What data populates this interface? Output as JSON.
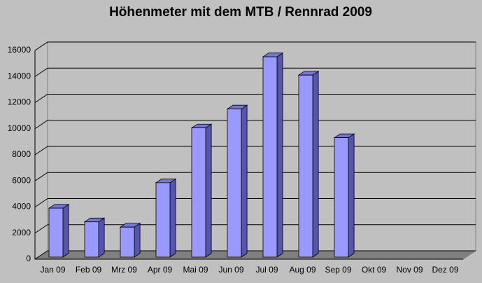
{
  "chart_data": {
    "type": "bar",
    "title": "Höhenmeter mit dem MTB / Rennrad 2009",
    "categories": [
      "Jan 09",
      "Feb 09",
      "Mrz 09",
      "Apr 09",
      "Mai 09",
      "Jun 09",
      "Jul 09",
      "Aug 09",
      "Sep 09",
      "Okt 09",
      "Nov 09",
      "Dez 09"
    ],
    "values": [
      3750,
      2700,
      2300,
      5700,
      9900,
      11350,
      15350,
      13950,
      9150,
      null,
      null,
      null
    ],
    "color": "#9999ff",
    "ylim": [
      0,
      16000
    ],
    "yticks": [
      0,
      2000,
      4000,
      6000,
      8000,
      10000,
      12000,
      14000,
      16000
    ],
    "grid": true
  }
}
